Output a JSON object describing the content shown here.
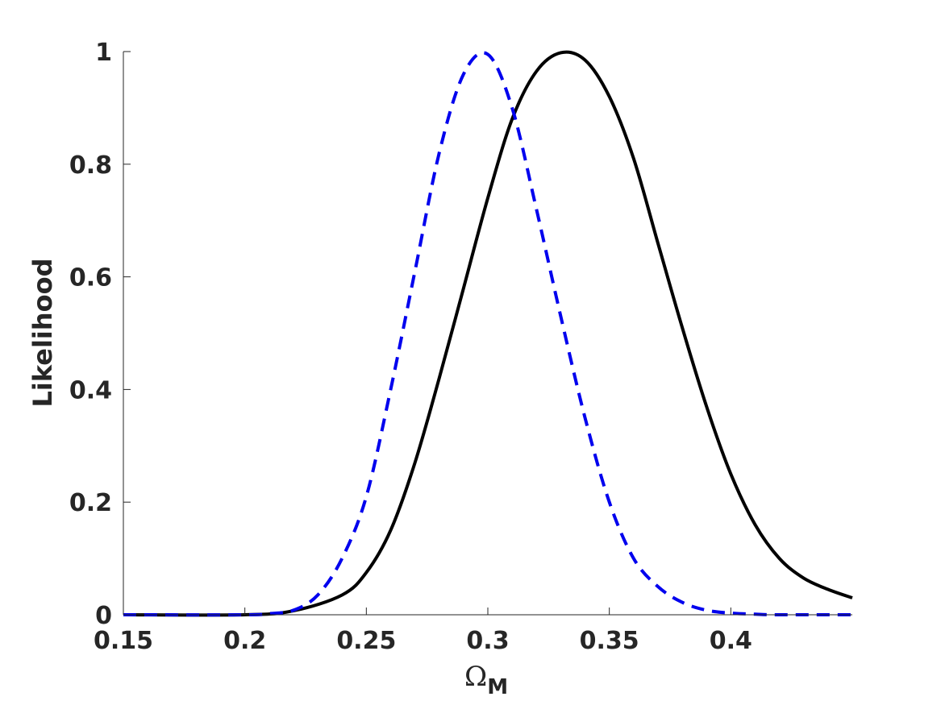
{
  "chart_data": {
    "type": "line",
    "title": "",
    "xlabel": "Ω",
    "xlabel_subscript": "M",
    "ylabel": "Likelihood",
    "xlim": [
      0.15,
      0.45
    ],
    "ylim": [
      0,
      1
    ],
    "x_ticks": [
      0.15,
      0.2,
      0.25,
      0.3,
      0.35,
      0.4
    ],
    "x_tick_labels": [
      "0.15",
      "0.2",
      "0.25",
      "0.3",
      "0.35",
      "0.4"
    ],
    "y_ticks": [
      0,
      0.2,
      0.4,
      0.6,
      0.8,
      1
    ],
    "y_tick_labels": [
      "0",
      "0.2",
      "0.4",
      "0.6",
      "0.8",
      "1"
    ],
    "grid": false,
    "legend": "none",
    "series": [
      {
        "style": "solid",
        "color": "#000000",
        "x": [
          0.15,
          0.2,
          0.22,
          0.24,
          0.25,
          0.26,
          0.27,
          0.28,
          0.29,
          0.3,
          0.31,
          0.32,
          0.33,
          0.34,
          0.35,
          0.36,
          0.37,
          0.38,
          0.39,
          0.4,
          0.41,
          0.42,
          0.43,
          0.44,
          0.45
        ],
        "y": [
          0.0,
          0.0,
          0.007,
          0.035,
          0.075,
          0.15,
          0.27,
          0.42,
          0.58,
          0.74,
          0.88,
          0.965,
          0.998,
          0.985,
          0.92,
          0.81,
          0.66,
          0.51,
          0.37,
          0.25,
          0.16,
          0.1,
          0.065,
          0.045,
          0.03
        ]
      },
      {
        "style": "dashed",
        "color": "#0000ee",
        "x": [
          0.15,
          0.2,
          0.21,
          0.22,
          0.23,
          0.24,
          0.25,
          0.26,
          0.27,
          0.28,
          0.29,
          0.3,
          0.31,
          0.32,
          0.33,
          0.34,
          0.35,
          0.36,
          0.37,
          0.38,
          0.39,
          0.4,
          0.41,
          0.42,
          0.45
        ],
        "y": [
          0.0,
          0.0,
          0.002,
          0.008,
          0.035,
          0.1,
          0.21,
          0.4,
          0.61,
          0.82,
          0.96,
          0.995,
          0.9,
          0.72,
          0.53,
          0.35,
          0.2,
          0.1,
          0.05,
          0.022,
          0.008,
          0.003,
          0.001,
          0.0,
          0.0
        ]
      }
    ]
  }
}
